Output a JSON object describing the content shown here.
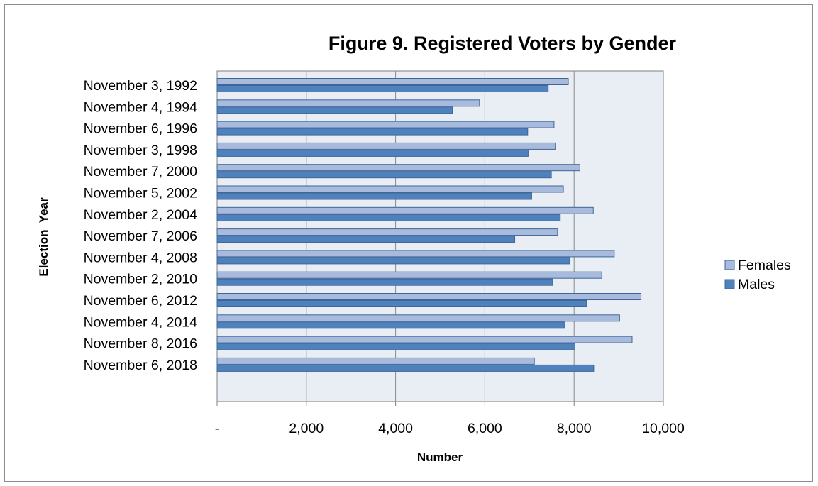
{
  "chart_data": {
    "type": "bar",
    "orientation": "horizontal",
    "title": "Figure 9. Registered Voters by Gender",
    "xlabel": "Number",
    "ylabel": "Election  Year",
    "xlim": [
      0,
      10000
    ],
    "x_ticks": [
      0,
      2000,
      4000,
      6000,
      8000,
      10000
    ],
    "x_tick_labels": [
      "-",
      "2,000",
      "4,000",
      "6,000",
      "8,000",
      "10,000"
    ],
    "grid": "vertical major gridlines",
    "legend": "right",
    "categories": [
      "November 3, 1992",
      "November 4, 1994",
      "November 6, 1996",
      "November 3, 1998",
      "November 7, 2000",
      "November 5, 2002",
      "November 2, 2004",
      "November 7, 2006",
      "November 4, 2008",
      "November 2, 2010",
      "November 6, 2012",
      "November 4, 2014",
      "November 8, 2016",
      "November 6, 2018"
    ],
    "series": [
      {
        "name": "Females",
        "color": "#a9bbdd",
        "values": [
          7870,
          5880,
          7550,
          7580,
          8130,
          7760,
          8430,
          7630,
          8900,
          8620,
          9500,
          9020,
          9300,
          7110
        ]
      },
      {
        "name": "Males",
        "color": "#4f81bd",
        "values": [
          7420,
          5270,
          6960,
          6970,
          7490,
          7050,
          7690,
          6670,
          7900,
          7520,
          8280,
          7780,
          8020,
          8440
        ]
      }
    ]
  }
}
